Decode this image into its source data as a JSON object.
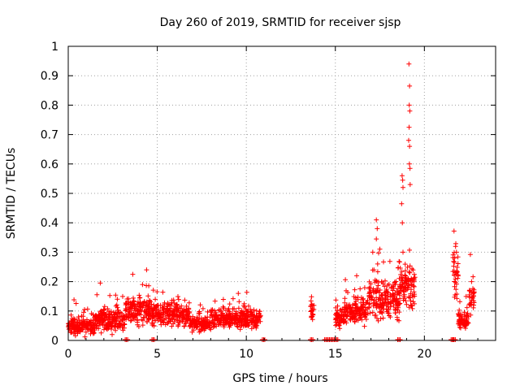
{
  "chart_data": {
    "type": "scatter",
    "title": "Day 260 of 2019, SRMTID for receiver sjsp",
    "xlabel": "GPS time / hours",
    "ylabel": "SRMTID / TECUs",
    "xlim": [
      0,
      24
    ],
    "ylim": [
      0,
      1
    ],
    "x_ticks": [
      0,
      5,
      10,
      15,
      20
    ],
    "y_ticks": [
      0,
      0.1,
      0.2,
      0.3,
      0.4,
      0.5,
      0.6,
      0.7,
      0.8,
      0.9,
      1
    ],
    "grid": true,
    "marker": "+",
    "series": [
      {
        "name": "SRMTID",
        "color": "#ff0000",
        "segments": [
          {
            "from": 0.0,
            "to": 1.5,
            "center": 0.05,
            "spread": 0.03
          },
          {
            "from": 1.5,
            "to": 3.2,
            "center": 0.07,
            "spread": 0.035
          },
          {
            "from": 3.2,
            "to": 4.7,
            "center": 0.1,
            "spread": 0.045
          },
          {
            "from": 4.7,
            "to": 6.8,
            "center": 0.09,
            "spread": 0.035
          },
          {
            "from": 6.8,
            "to": 8.0,
            "center": 0.055,
            "spread": 0.02
          },
          {
            "from": 8.0,
            "to": 10.8,
            "center": 0.075,
            "spread": 0.03
          },
          {
            "from": 13.6,
            "to": 13.8,
            "center": 0.1,
            "spread": 0.04
          },
          {
            "from": 15.0,
            "to": 15.5,
            "center": 0.08,
            "spread": 0.03
          },
          {
            "from": 15.5,
            "to": 16.8,
            "center": 0.1,
            "spread": 0.04
          },
          {
            "from": 16.8,
            "to": 18.6,
            "center": 0.14,
            "spread": 0.06
          },
          {
            "from": 18.6,
            "to": 19.5,
            "center": 0.18,
            "spread": 0.06
          },
          {
            "from": 21.6,
            "to": 21.9,
            "center": 0.22,
            "spread": 0.07
          },
          {
            "from": 21.9,
            "to": 22.5,
            "center": 0.07,
            "spread": 0.025
          },
          {
            "from": 22.5,
            "to": 22.8,
            "center": 0.14,
            "spread": 0.05
          }
        ],
        "peaks": [
          {
            "x": 19.13,
            "y": 0.94
          },
          {
            "x": 19.17,
            "y": 0.865
          },
          {
            "x": 19.15,
            "y": 0.8
          },
          {
            "x": 19.18,
            "y": 0.78
          },
          {
            "x": 19.14,
            "y": 0.725
          },
          {
            "x": 19.12,
            "y": 0.68
          },
          {
            "x": 19.17,
            "y": 0.66
          },
          {
            "x": 19.16,
            "y": 0.6
          },
          {
            "x": 19.19,
            "y": 0.585
          },
          {
            "x": 18.75,
            "y": 0.56
          },
          {
            "x": 18.78,
            "y": 0.545
          },
          {
            "x": 18.8,
            "y": 0.52
          },
          {
            "x": 19.2,
            "y": 0.53
          },
          {
            "x": 18.72,
            "y": 0.465
          },
          {
            "x": 18.76,
            "y": 0.4
          },
          {
            "x": 17.3,
            "y": 0.41
          },
          {
            "x": 17.35,
            "y": 0.38
          },
          {
            "x": 17.3,
            "y": 0.345
          },
          {
            "x": 17.1,
            "y": 0.3
          },
          {
            "x": 18.8,
            "y": 0.3
          },
          {
            "x": 4.4,
            "y": 0.24
          },
          {
            "x": 1.8,
            "y": 0.195
          },
          {
            "x": 21.75,
            "y": 0.32
          },
          {
            "x": 21.8,
            "y": 0.3
          },
          {
            "x": 21.7,
            "y": 0.28
          },
          {
            "x": 22.65,
            "y": 0.2
          },
          {
            "x": 16.2,
            "y": 0.22
          }
        ],
        "zero_markers": [
          3.2,
          4.7,
          10.9,
          13.6,
          14.4,
          14.6,
          14.8,
          15.0,
          18.5,
          21.5,
          21.6
        ]
      }
    ]
  }
}
